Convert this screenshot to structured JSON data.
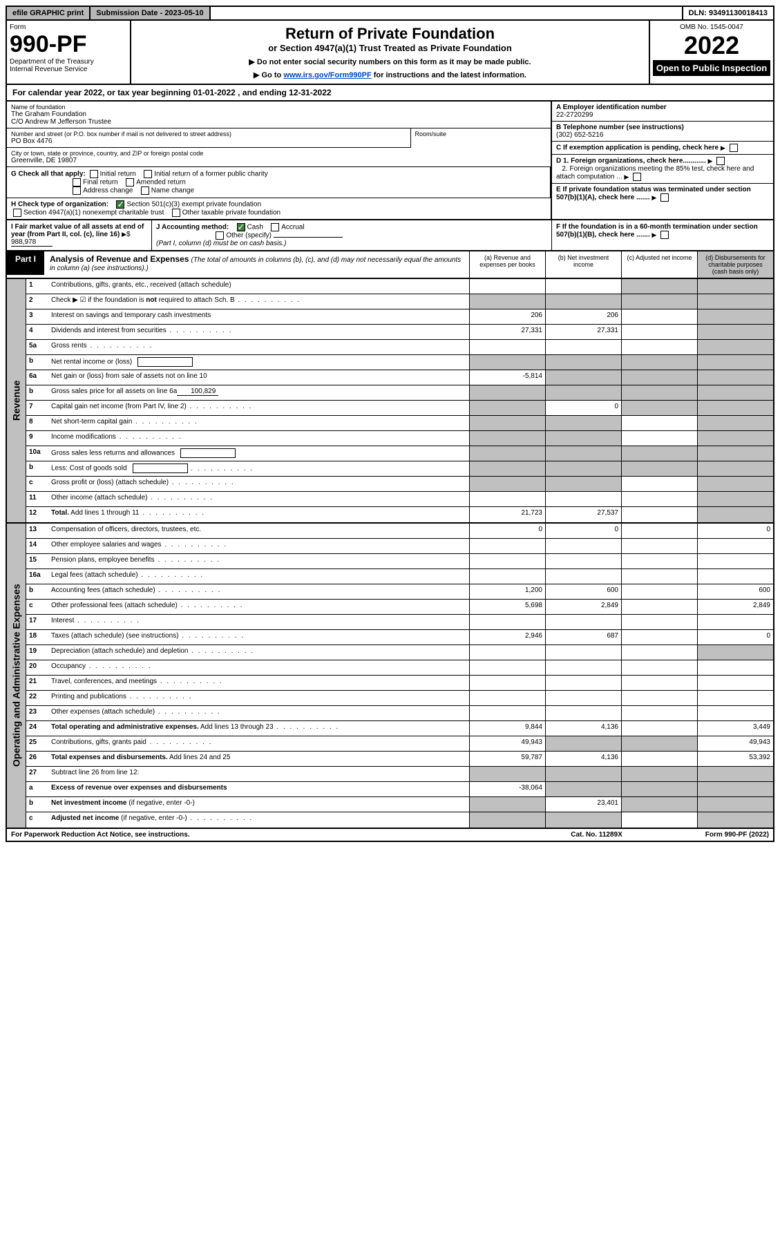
{
  "topbar": {
    "efile": "efile GRAPHIC print",
    "submission": "Submission Date - 2023-05-10",
    "dln": "DLN: 93491130018413"
  },
  "header": {
    "form_label": "Form",
    "form_number": "990-PF",
    "dept": "Department of the Treasury",
    "irs": "Internal Revenue Service",
    "title": "Return of Private Foundation",
    "subtitle": "or Section 4947(a)(1) Trust Treated as Private Foundation",
    "note1": "▶ Do not enter social security numbers on this form as it may be made public.",
    "note2_prefix": "▶ Go to ",
    "note2_link": "www.irs.gov/Form990PF",
    "note2_suffix": " for instructions and the latest information.",
    "omb": "OMB No. 1545-0047",
    "year": "2022",
    "open_public": "Open to Public Inspection"
  },
  "cal_year": "For calendar year 2022, or tax year beginning 01-01-2022             , and ending 12-31-2022",
  "foundation": {
    "name_label": "Name of foundation",
    "name1": "The Graham Foundation",
    "name2": "C/O Andrew M Jefferson Trustee",
    "street_label": "Number and street (or P.O. box number if mail is not delivered to street address)",
    "street": "PO Box 4476",
    "room_label": "Room/suite",
    "city_label": "City or town, state or province, country, and ZIP or foreign postal code",
    "city": "Greenville, DE  19807",
    "ein_label": "A Employer identification number",
    "ein": "22-2720299",
    "phone_label": "B Telephone number (see instructions)",
    "phone": "(302) 652-5216",
    "c_label": "C If exemption application is pending, check here",
    "d1_label": "D 1. Foreign organizations, check here............",
    "d2_label": "2. Foreign organizations meeting the 85% test, check here and attach computation ...",
    "e_label": "E  If private foundation status was terminated under section 507(b)(1)(A), check here .......",
    "f_label": "F  If the foundation is in a 60-month termination under section 507(b)(1)(B), check here ......."
  },
  "g": {
    "label": "G Check all that apply:",
    "opts": [
      "Initial return",
      "Initial return of a former public charity",
      "Final return",
      "Amended return",
      "Address change",
      "Name change"
    ]
  },
  "h": {
    "label": "H Check type of organization:",
    "opt1": "Section 501(c)(3) exempt private foundation",
    "opt2": "Section 4947(a)(1) nonexempt charitable trust",
    "opt3": "Other taxable private foundation"
  },
  "i": {
    "label": "I Fair market value of all assets at end of year (from Part II, col. (c), line 16)",
    "value": "988,978"
  },
  "j": {
    "label": "J Accounting method:",
    "cash": "Cash",
    "accrual": "Accrual",
    "other": "Other (specify)",
    "note": "(Part I, column (d) must be on cash basis.)"
  },
  "part1": {
    "label": "Part I",
    "title": "Analysis of Revenue and Expenses",
    "desc": "(The total of amounts in columns (b), (c), and (d) may not necessarily equal the amounts in column (a) (see instructions).)",
    "cols": {
      "a": "(a)   Revenue and expenses per books",
      "b": "(b)   Net investment income",
      "c": "(c)   Adjusted net income",
      "d": "(d)   Disbursements for charitable purposes (cash basis only)"
    }
  },
  "side_labels": {
    "revenue": "Revenue",
    "expenses": "Operating and Administrative Expenses"
  },
  "rows": [
    {
      "n": "1",
      "desc": "Contributions, gifts, grants, etc., received (attach schedule)",
      "a": "",
      "b": "",
      "c": "shaded",
      "d": "shaded"
    },
    {
      "n": "2",
      "desc": "Check ▶ ☑ if the foundation is <b>not</b> required to attach Sch. B",
      "a": "shaded",
      "b": "shaded",
      "c": "shaded",
      "d": "shaded",
      "dots": true
    },
    {
      "n": "3",
      "desc": "Interest on savings and temporary cash investments",
      "a": "206",
      "b": "206",
      "c": "",
      "d": "shaded"
    },
    {
      "n": "4",
      "desc": "Dividends and interest from securities",
      "a": "27,331",
      "b": "27,331",
      "c": "",
      "d": "shaded",
      "dots": true
    },
    {
      "n": "5a",
      "desc": "Gross rents",
      "a": "",
      "b": "",
      "c": "",
      "d": "shaded",
      "dots": true
    },
    {
      "n": "b",
      "desc": "Net rental income or (loss)",
      "a": "shaded",
      "b": "shaded",
      "c": "shaded",
      "d": "shaded",
      "inline_box": true
    },
    {
      "n": "6a",
      "desc": "Net gain or (loss) from sale of assets not on line 10",
      "a": "-5,814",
      "b": "shaded",
      "c": "shaded",
      "d": "shaded"
    },
    {
      "n": "b",
      "desc": "Gross sales price for all assets on line 6a",
      "a": "shaded",
      "b": "shaded",
      "c": "shaded",
      "d": "shaded",
      "inline_val": "100,829"
    },
    {
      "n": "7",
      "desc": "Capital gain net income (from Part IV, line 2)",
      "a": "shaded",
      "b": "0",
      "c": "shaded",
      "d": "shaded",
      "dots": true
    },
    {
      "n": "8",
      "desc": "Net short-term capital gain",
      "a": "shaded",
      "b": "shaded",
      "c": "",
      "d": "shaded",
      "dots": true
    },
    {
      "n": "9",
      "desc": "Income modifications",
      "a": "shaded",
      "b": "shaded",
      "c": "",
      "d": "shaded",
      "dots": true
    },
    {
      "n": "10a",
      "desc": "Gross sales less returns and allowances",
      "a": "shaded",
      "b": "shaded",
      "c": "shaded",
      "d": "shaded",
      "inline_box": true
    },
    {
      "n": "b",
      "desc": "Less: Cost of goods sold",
      "a": "shaded",
      "b": "shaded",
      "c": "shaded",
      "d": "shaded",
      "inline_box": true,
      "dots": true
    },
    {
      "n": "c",
      "desc": "Gross profit or (loss) (attach schedule)",
      "a": "shaded",
      "b": "shaded",
      "c": "",
      "d": "shaded",
      "dots": true
    },
    {
      "n": "11",
      "desc": "Other income (attach schedule)",
      "a": "",
      "b": "",
      "c": "",
      "d": "shaded",
      "dots": true
    },
    {
      "n": "12",
      "desc": "<b>Total.</b> Add lines 1 through 11",
      "a": "21,723",
      "b": "27,537",
      "c": "",
      "d": "shaded",
      "dots": true
    }
  ],
  "rows2": [
    {
      "n": "13",
      "desc": "Compensation of officers, directors, trustees, etc.",
      "a": "0",
      "b": "0",
      "c": "",
      "d": "0"
    },
    {
      "n": "14",
      "desc": "Other employee salaries and wages",
      "a": "",
      "b": "",
      "c": "",
      "d": "",
      "dots": true
    },
    {
      "n": "15",
      "desc": "Pension plans, employee benefits",
      "a": "",
      "b": "",
      "c": "",
      "d": "",
      "dots": true
    },
    {
      "n": "16a",
      "desc": "Legal fees (attach schedule)",
      "a": "",
      "b": "",
      "c": "",
      "d": "",
      "dots": true
    },
    {
      "n": "b",
      "desc": "Accounting fees (attach schedule)",
      "a": "1,200",
      "b": "600",
      "c": "",
      "d": "600",
      "dots": true
    },
    {
      "n": "c",
      "desc": "Other professional fees (attach schedule)",
      "a": "5,698",
      "b": "2,849",
      "c": "",
      "d": "2,849",
      "dots": true
    },
    {
      "n": "17",
      "desc": "Interest",
      "a": "",
      "b": "",
      "c": "",
      "d": "",
      "dots": true
    },
    {
      "n": "18",
      "desc": "Taxes (attach schedule) (see instructions)",
      "a": "2,946",
      "b": "687",
      "c": "",
      "d": "0",
      "dots": true
    },
    {
      "n": "19",
      "desc": "Depreciation (attach schedule) and depletion",
      "a": "",
      "b": "",
      "c": "",
      "d": "shaded",
      "dots": true
    },
    {
      "n": "20",
      "desc": "Occupancy",
      "a": "",
      "b": "",
      "c": "",
      "d": "",
      "dots": true
    },
    {
      "n": "21",
      "desc": "Travel, conferences, and meetings",
      "a": "",
      "b": "",
      "c": "",
      "d": "",
      "dots": true
    },
    {
      "n": "22",
      "desc": "Printing and publications",
      "a": "",
      "b": "",
      "c": "",
      "d": "",
      "dots": true
    },
    {
      "n": "23",
      "desc": "Other expenses (attach schedule)",
      "a": "",
      "b": "",
      "c": "",
      "d": "",
      "dots": true
    },
    {
      "n": "24",
      "desc": "<b>Total operating and administrative expenses.</b> Add lines 13 through 23",
      "a": "9,844",
      "b": "4,136",
      "c": "",
      "d": "3,449",
      "dots": true
    },
    {
      "n": "25",
      "desc": "Contributions, gifts, grants paid",
      "a": "49,943",
      "b": "shaded",
      "c": "shaded",
      "d": "49,943",
      "dots": true
    },
    {
      "n": "26",
      "desc": "<b>Total expenses and disbursements.</b> Add lines 24 and 25",
      "a": "59,787",
      "b": "4,136",
      "c": "",
      "d": "53,392"
    },
    {
      "n": "27",
      "desc": "Subtract line 26 from line 12:",
      "a": "shaded",
      "b": "shaded",
      "c": "shaded",
      "d": "shaded"
    },
    {
      "n": "a",
      "desc": "<b>Excess of revenue over expenses and disbursements</b>",
      "a": "-38,064",
      "b": "shaded",
      "c": "shaded",
      "d": "shaded"
    },
    {
      "n": "b",
      "desc": "<b>Net investment income</b> (if negative, enter -0-)",
      "a": "shaded",
      "b": "23,401",
      "c": "shaded",
      "d": "shaded"
    },
    {
      "n": "c",
      "desc": "<b>Adjusted net income</b> (if negative, enter -0-)",
      "a": "shaded",
      "b": "shaded",
      "c": "",
      "d": "shaded",
      "dots": true
    }
  ],
  "footer": {
    "left": "For Paperwork Reduction Act Notice, see instructions.",
    "mid": "Cat. No. 11289X",
    "right": "Form 990-PF (2022)"
  },
  "colors": {
    "shaded": "#c0c0c0",
    "link": "#0045bb",
    "check_green": "#3b7a3b"
  }
}
